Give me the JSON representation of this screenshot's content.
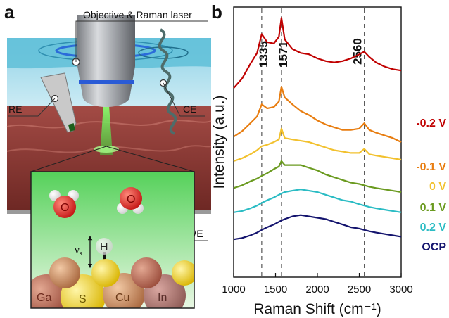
{
  "panel_a": {
    "letter": "a",
    "labels": {
      "objective": "Objective & Raman laser",
      "reference_electrode": "RE",
      "counter_electrode": "CE",
      "working_electrode": "WE"
    },
    "inset": {
      "molecules": [
        "O",
        "O"
      ],
      "adsorbate": "H",
      "vibration": "ν",
      "vibration_sub": "s",
      "atoms": [
        "Ga",
        "S",
        "Cu",
        "In"
      ]
    },
    "colors": {
      "water": "#bfe6f2",
      "catalyst": "#8e3b36",
      "laser": "#3fd23a",
      "inset_bg": "#8fe07d",
      "electrode": "#9a9a9a"
    }
  },
  "panel_b": {
    "letter": "b",
    "chart_data": {
      "type": "line",
      "xlabel": "Raman Shift (cm⁻¹)",
      "ylabel": "Intensity (a.u.)",
      "xlim": [
        1000,
        3000
      ],
      "xticks": [
        "1000",
        "1500",
        "2000",
        "2500",
        "3000"
      ],
      "peak_markers": [
        {
          "label": "1335",
          "x": 1335
        },
        {
          "label": "1571",
          "x": 1571
        },
        {
          "label": "2560",
          "x": 2560
        }
      ],
      "series": [
        {
          "name": "-0.2 V",
          "color": "#c00000",
          "offset": 0.7,
          "points": [
            [
              1000,
              0.7
            ],
            [
              1100,
              0.735
            ],
            [
              1200,
              0.79
            ],
            [
              1280,
              0.83
            ],
            [
              1335,
              0.9
            ],
            [
              1400,
              0.87
            ],
            [
              1480,
              0.865
            ],
            [
              1540,
              0.89
            ],
            [
              1571,
              0.96
            ],
            [
              1610,
              0.88
            ],
            [
              1700,
              0.845
            ],
            [
              1800,
              0.83
            ],
            [
              1900,
              0.825
            ],
            [
              2000,
              0.81
            ],
            [
              2100,
              0.8
            ],
            [
              2200,
              0.795
            ],
            [
              2300,
              0.8
            ],
            [
              2400,
              0.81
            ],
            [
              2500,
              0.825
            ],
            [
              2560,
              0.835
            ],
            [
              2620,
              0.815
            ],
            [
              2700,
              0.795
            ],
            [
              2800,
              0.78
            ],
            [
              2900,
              0.77
            ],
            [
              3000,
              0.765
            ]
          ]
        },
        {
          "name": "-0.1 V",
          "color": "#e87d10",
          "offset": 0.52,
          "points": [
            [
              1000,
              0.52
            ],
            [
              1100,
              0.54
            ],
            [
              1200,
              0.57
            ],
            [
              1280,
              0.595
            ],
            [
              1335,
              0.64
            ],
            [
              1400,
              0.625
            ],
            [
              1480,
              0.63
            ],
            [
              1540,
              0.65
            ],
            [
              1571,
              0.705
            ],
            [
              1610,
              0.665
            ],
            [
              1700,
              0.64
            ],
            [
              1800,
              0.615
            ],
            [
              1900,
              0.6
            ],
            [
              2000,
              0.58
            ],
            [
              2100,
              0.565
            ],
            [
              2200,
              0.555
            ],
            [
              2300,
              0.545
            ],
            [
              2400,
              0.545
            ],
            [
              2500,
              0.55
            ],
            [
              2560,
              0.57
            ],
            [
              2620,
              0.545
            ],
            [
              2700,
              0.535
            ],
            [
              2800,
              0.525
            ],
            [
              2900,
              0.515
            ],
            [
              3000,
              0.5
            ]
          ]
        },
        {
          "name": "0 V",
          "color": "#f2c12e",
          "offset": 0.43,
          "points": [
            [
              1000,
              0.43
            ],
            [
              1100,
              0.44
            ],
            [
              1200,
              0.455
            ],
            [
              1280,
              0.47
            ],
            [
              1335,
              0.485
            ],
            [
              1400,
              0.49
            ],
            [
              1480,
              0.5
            ],
            [
              1540,
              0.51
            ],
            [
              1571,
              0.55
            ],
            [
              1610,
              0.515
            ],
            [
              1700,
              0.51
            ],
            [
              1800,
              0.505
            ],
            [
              1900,
              0.5
            ],
            [
              2000,
              0.49
            ],
            [
              2100,
              0.48
            ],
            [
              2200,
              0.47
            ],
            [
              2300,
              0.465
            ],
            [
              2400,
              0.46
            ],
            [
              2500,
              0.46
            ],
            [
              2560,
              0.475
            ],
            [
              2620,
              0.455
            ],
            [
              2700,
              0.45
            ],
            [
              2800,
              0.445
            ],
            [
              2900,
              0.44
            ],
            [
              3000,
              0.435
            ]
          ]
        },
        {
          "name": "0.1 V",
          "color": "#6a9a1f",
          "offset": 0.33,
          "points": [
            [
              1000,
              0.33
            ],
            [
              1100,
              0.34
            ],
            [
              1200,
              0.355
            ],
            [
              1280,
              0.365
            ],
            [
              1335,
              0.375
            ],
            [
              1400,
              0.385
            ],
            [
              1480,
              0.4
            ],
            [
              1540,
              0.41
            ],
            [
              1571,
              0.43
            ],
            [
              1610,
              0.415
            ],
            [
              1700,
              0.415
            ],
            [
              1800,
              0.415
            ],
            [
              1900,
              0.405
            ],
            [
              2000,
              0.395
            ],
            [
              2100,
              0.38
            ],
            [
              2200,
              0.37
            ],
            [
              2300,
              0.36
            ],
            [
              2400,
              0.35
            ],
            [
              2500,
              0.345
            ],
            [
              2560,
              0.34
            ],
            [
              2620,
              0.335
            ],
            [
              2700,
              0.33
            ],
            [
              2800,
              0.325
            ],
            [
              2900,
              0.32
            ],
            [
              3000,
              0.315
            ]
          ]
        },
        {
          "name": "0.2 V",
          "color": "#2bbcc4",
          "offset": 0.24,
          "points": [
            [
              1000,
              0.24
            ],
            [
              1100,
              0.245
            ],
            [
              1200,
              0.255
            ],
            [
              1280,
              0.265
            ],
            [
              1335,
              0.275
            ],
            [
              1400,
              0.285
            ],
            [
              1480,
              0.295
            ],
            [
              1540,
              0.305
            ],
            [
              1571,
              0.31
            ],
            [
              1610,
              0.315
            ],
            [
              1700,
              0.32
            ],
            [
              1800,
              0.325
            ],
            [
              1900,
              0.32
            ],
            [
              2000,
              0.315
            ],
            [
              2100,
              0.305
            ],
            [
              2200,
              0.295
            ],
            [
              2300,
              0.285
            ],
            [
              2400,
              0.28
            ],
            [
              2500,
              0.27
            ],
            [
              2560,
              0.265
            ],
            [
              2620,
              0.26
            ],
            [
              2700,
              0.255
            ],
            [
              2800,
              0.25
            ],
            [
              2900,
              0.245
            ],
            [
              3000,
              0.24
            ]
          ]
        },
        {
          "name": "OCP",
          "color": "#14146e",
          "offset": 0.14,
          "points": [
            [
              1000,
              0.14
            ],
            [
              1100,
              0.145
            ],
            [
              1200,
              0.155
            ],
            [
              1280,
              0.165
            ],
            [
              1335,
              0.175
            ],
            [
              1400,
              0.185
            ],
            [
              1480,
              0.195
            ],
            [
              1540,
              0.205
            ],
            [
              1571,
              0.21
            ],
            [
              1610,
              0.215
            ],
            [
              1700,
              0.225
            ],
            [
              1800,
              0.23
            ],
            [
              1900,
              0.225
            ],
            [
              2000,
              0.22
            ],
            [
              2100,
              0.215
            ],
            [
              2200,
              0.205
            ],
            [
              2300,
              0.195
            ],
            [
              2400,
              0.185
            ],
            [
              2500,
              0.18
            ],
            [
              2560,
              0.175
            ],
            [
              2620,
              0.17
            ],
            [
              2700,
              0.165
            ],
            [
              2800,
              0.16
            ],
            [
              2900,
              0.155
            ],
            [
              3000,
              0.15
            ]
          ]
        }
      ]
    }
  }
}
